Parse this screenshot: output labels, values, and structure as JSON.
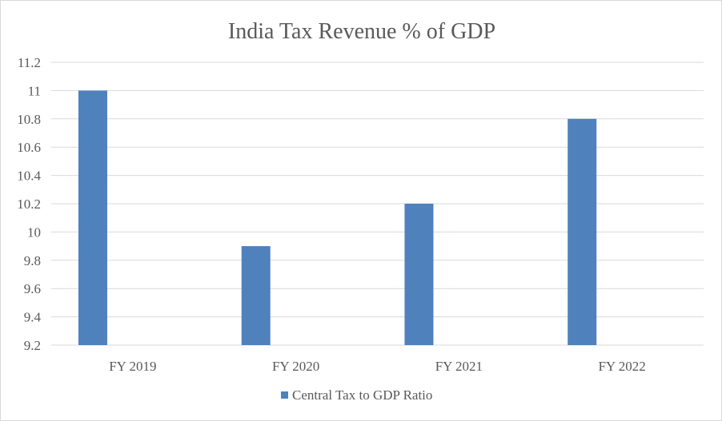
{
  "chart_data": {
    "type": "bar",
    "title": "India Tax Revenue % of GDP",
    "categories": [
      "FY 2019",
      "FY 2020",
      "FY 2021",
      "FY 2022"
    ],
    "series": [
      {
        "name": "Central Tax to GDP Ratio",
        "values": [
          11.0,
          9.9,
          10.2,
          10.8
        ],
        "color": "#4f81bd"
      }
    ],
    "ylim": [
      9.2,
      11.2
    ],
    "yticks": [
      "9.2",
      "9.4",
      "9.6",
      "9.8",
      "10",
      "10.2",
      "10.4",
      "10.6",
      "10.8",
      "11",
      "11.2"
    ],
    "xlabel": "",
    "ylabel": "",
    "grid": true,
    "legend_position": "bottom"
  }
}
